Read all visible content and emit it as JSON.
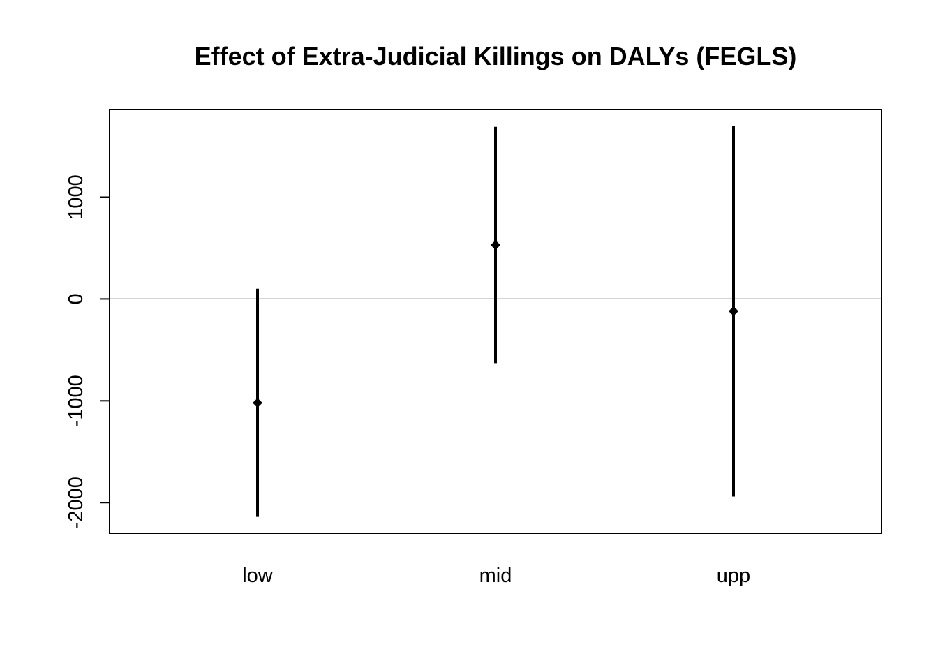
{
  "chart_data": {
    "type": "errorbar",
    "title": "Effect of Extra-Judicial Killings on DALYs (FEGLS)",
    "xlabel": "",
    "ylabel": "",
    "categories": [
      "low",
      "mid",
      "upp"
    ],
    "estimates": [
      -1020,
      530,
      -120
    ],
    "lower": [
      -2140,
      -630,
      -1940
    ],
    "upper": [
      100,
      1690,
      1700
    ],
    "ylim": [
      -2300,
      1860
    ],
    "yticks": [
      -2000,
      -1000,
      0,
      1000
    ],
    "ytick_labels": [
      "-2000",
      "-1000",
      "0",
      "1000"
    ],
    "reference_line": 0,
    "grid": false,
    "colors": {
      "marks": "#000000",
      "reference_line": "#555555",
      "frame": "#000000"
    }
  }
}
